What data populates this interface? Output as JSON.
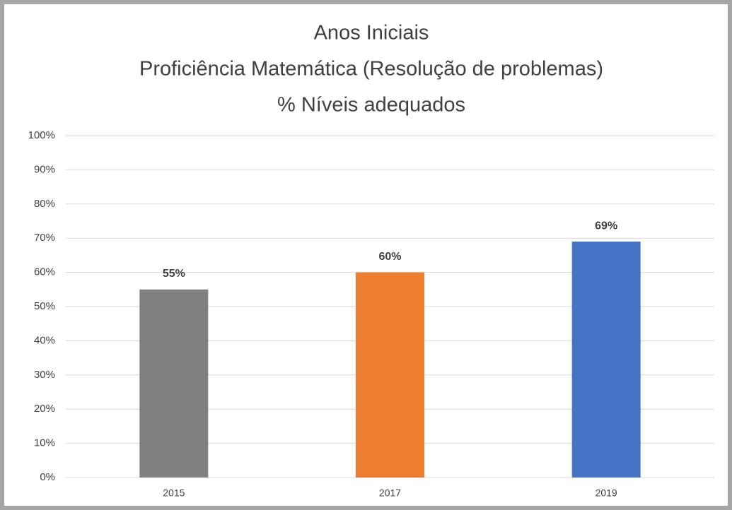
{
  "chart_data": {
    "type": "bar",
    "title": [
      "Anos Iniciais",
      "Proficiência Matemática (Resolução de problemas)",
      "% Níveis adequados"
    ],
    "categories": [
      "2015",
      "2017",
      "2019"
    ],
    "values": [
      55,
      60,
      69
    ],
    "value_labels": [
      "55%",
      "60%",
      "69%"
    ],
    "colors": [
      "#808080",
      "#ed7d31",
      "#4472c4"
    ],
    "ylim": [
      0,
      100
    ],
    "yticks": [
      {
        "value": 0,
        "label": "0%"
      },
      {
        "value": 10,
        "label": "10%"
      },
      {
        "value": 20,
        "label": "20%"
      },
      {
        "value": 30,
        "label": "30%"
      },
      {
        "value": 40,
        "label": "40%"
      },
      {
        "value": 50,
        "label": "50%"
      },
      {
        "value": 60,
        "label": "60%"
      },
      {
        "value": 70,
        "label": "70%"
      },
      {
        "value": 80,
        "label": "80%"
      },
      {
        "value": 90,
        "label": "90%"
      },
      {
        "value": 100,
        "label": "100%"
      }
    ],
    "grid": true
  }
}
